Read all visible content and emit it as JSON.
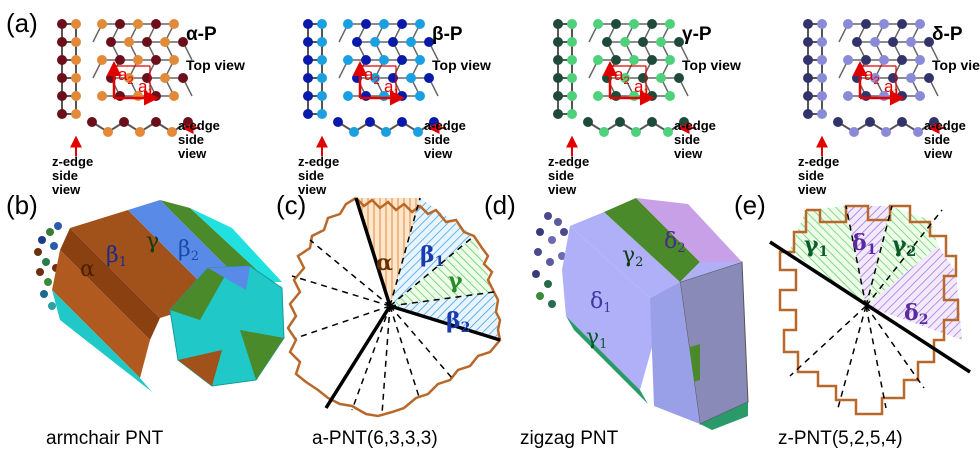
{
  "panels": {
    "a": {
      "label": "(a)",
      "phases": [
        {
          "title": "α-P",
          "top_view": "Top view",
          "a_edge": [
            "a-edge",
            "side",
            "view"
          ],
          "z_edge": [
            "z-edge",
            "side",
            "view"
          ],
          "a1": "a",
          "a1_sub": "1",
          "a2": "a",
          "a2_sub": "2",
          "color_dark": "#6b0f1a",
          "color_light": "#e08a3a"
        },
        {
          "title": "β-P",
          "top_view": "Top view",
          "a_edge": [
            "a-edge",
            "side",
            "view"
          ],
          "z_edge": [
            "z-edge",
            "side",
            "view"
          ],
          "a1": "a",
          "a1_sub": "1",
          "a2": "a",
          "a2_sub": "2",
          "color_dark": "#0a1aa8",
          "color_light": "#1aa0e0"
        },
        {
          "title": "γ-P",
          "top_view": "Top view",
          "a_edge": [
            "a-edge",
            "side",
            "view"
          ],
          "z_edge": [
            "z-edge",
            "side",
            "view"
          ],
          "a1": "a",
          "a1_sub": "1",
          "a2": "a",
          "a2_sub": "2",
          "color_dark": "#1f4a3a",
          "color_light": "#4fd07a"
        },
        {
          "title": "δ-P",
          "top_view": "Top view",
          "a_edge": [
            "a-edge",
            "side",
            "view"
          ],
          "z_edge": [
            "z-edge",
            "side",
            "view"
          ],
          "a1": "a",
          "a1_sub": "1",
          "a2": "a",
          "a2_sub": "2",
          "color_dark": "#33336b",
          "color_light": "#8a8ad8"
        }
      ]
    },
    "b": {
      "label": "(b)",
      "caption": "armchair PNT",
      "alpha": "α",
      "beta1": "β",
      "beta1_sub": "1",
      "gamma": "γ",
      "beta2": "β",
      "beta2_sub": "2"
    },
    "c": {
      "label": "(c)",
      "caption": "a-PNT(6,3,3,3)",
      "alpha": "α",
      "beta1": "β",
      "beta1_sub": "1",
      "gamma": "γ",
      "beta2": "β",
      "beta2_sub": "2"
    },
    "d": {
      "label": "(d)",
      "caption": "zigzag PNT",
      "gamma2": "γ",
      "gamma2_sub": "2",
      "delta2": "δ",
      "delta2_sub": "2",
      "delta1": "δ",
      "delta1_sub": "1",
      "gamma1": "γ",
      "gamma1_sub": "1"
    },
    "e": {
      "label": "(e)",
      "caption": "z-PNT(5,2,5,4)",
      "gamma1": "γ",
      "gamma1_sub": "1",
      "delta1": "δ",
      "delta1_sub": "1",
      "gamma2": "γ",
      "gamma2_sub": "2",
      "delta2": "δ",
      "delta2_sub": "2"
    },
    "colors": {
      "alpha": "#a0521a",
      "beta1": "#5a8ae8",
      "gamma": "#4a8a2a",
      "beta2": "#20e0e0",
      "delta1": "#b0b0f8",
      "delta2": "#c8a0e8",
      "arrow": "#e00000"
    }
  }
}
